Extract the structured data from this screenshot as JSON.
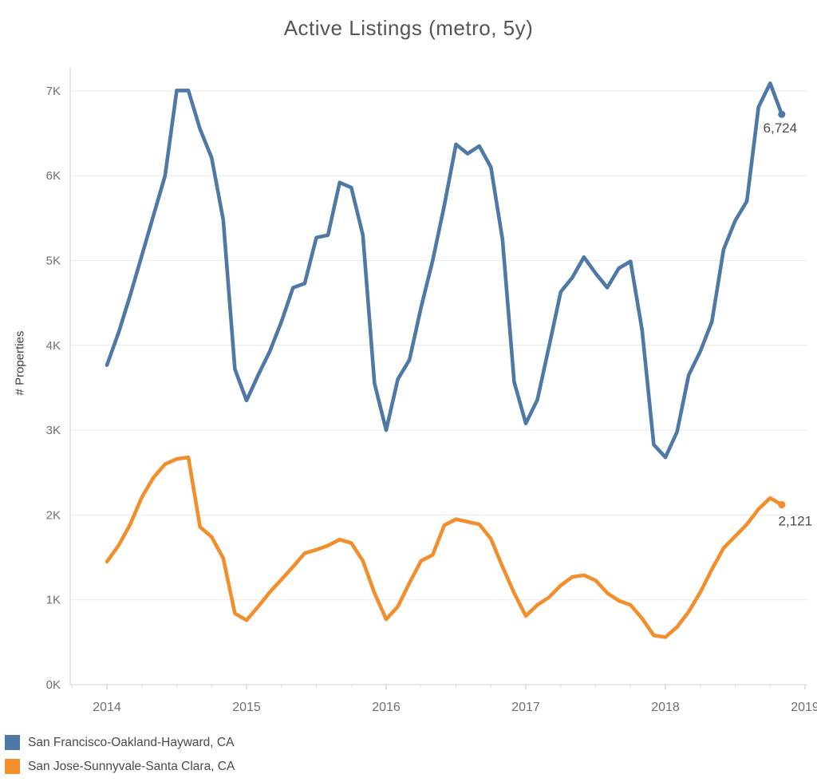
{
  "chart_data": {
    "type": "line",
    "title": "Active Listings (metro, 5y)",
    "xlabel": "",
    "ylabel": "# Properties",
    "grid": "horizontal",
    "legend_position": "bottom-left",
    "ylim": [
      0,
      7270
    ],
    "x": {
      "start": "2014-01",
      "end": "2018-11",
      "interval": "monthly",
      "points": 59
    },
    "x_ticks": [
      "2014",
      "2015",
      "2016",
      "2017",
      "2018",
      "2019"
    ],
    "y_ticks": [
      {
        "label": "0K",
        "value": 0
      },
      {
        "label": "1K",
        "value": 1000
      },
      {
        "label": "2K",
        "value": 2000
      },
      {
        "label": "3K",
        "value": 3000
      },
      {
        "label": "4K",
        "value": 4000
      },
      {
        "label": "5K",
        "value": 5000
      },
      {
        "label": "6K",
        "value": 6000
      },
      {
        "label": "7K",
        "value": 7000
      }
    ],
    "series": [
      {
        "id": "sf",
        "name": "San Francisco-Oakland-Hayward, CA",
        "color": "#4e79a7",
        "end_label": "6,724",
        "end_value": 6724,
        "values": [
          3767,
          4150,
          4590,
          5060,
          5530,
          6000,
          7005,
          7005,
          6550,
          6210,
          5480,
          3720,
          3350,
          3650,
          3930,
          4280,
          4680,
          4730,
          5270,
          5300,
          5920,
          5860,
          5300,
          3550,
          3000,
          3600,
          3830,
          4450,
          5000,
          5650,
          6370,
          6260,
          6350,
          6100,
          5250,
          3570,
          3080,
          3360,
          3990,
          4630,
          4800,
          5040,
          4850,
          4680,
          4910,
          4990,
          4180,
          2830,
          2680,
          2980,
          3650,
          3930,
          4280,
          5130,
          5470,
          5700,
          6810,
          7090,
          6724
        ]
      },
      {
        "id": "sj",
        "name": "San Jose-Sunnyvale-Santa Clara, CA",
        "color": "#f28e2b",
        "end_label": "2,121",
        "end_value": 2121,
        "values": [
          1450,
          1640,
          1890,
          2210,
          2440,
          2600,
          2660,
          2680,
          1860,
          1740,
          1490,
          840,
          760,
          920,
          1090,
          1240,
          1390,
          1550,
          1590,
          1640,
          1710,
          1670,
          1460,
          1080,
          770,
          920,
          1200,
          1460,
          1530,
          1880,
          1950,
          1920,
          1890,
          1720,
          1390,
          1080,
          810,
          940,
          1030,
          1170,
          1270,
          1290,
          1230,
          1080,
          990,
          940,
          780,
          580,
          560,
          680,
          860,
          1090,
          1360,
          1610,
          1750,
          1890,
          2070,
          2200,
          2121
        ]
      }
    ],
    "colors": {
      "grid": "#e9e9e9",
      "axis": "#d0d0d0",
      "tick": "#c9c9c9",
      "tick_label": "#6f6f6f",
      "annotation": "#4a4a4a"
    }
  }
}
